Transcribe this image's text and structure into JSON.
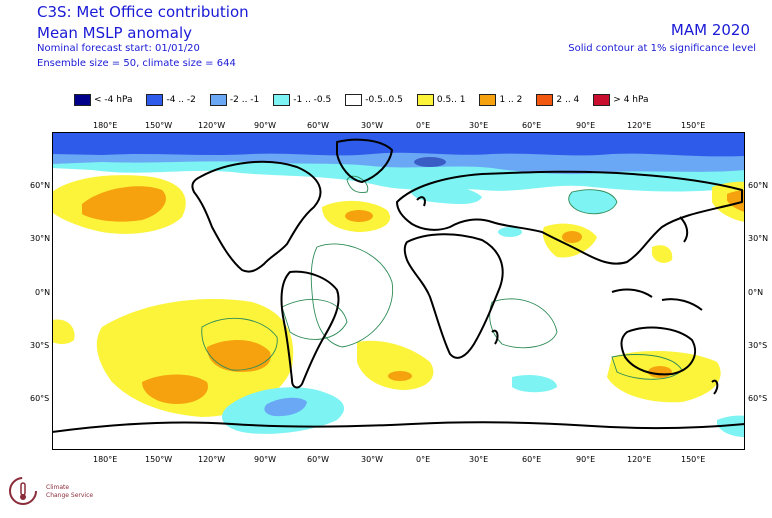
{
  "header": {
    "title_line1": "C3S: Met Office contribution",
    "title_line2": "Mean MSLP anomaly",
    "forecast_start": "Nominal forecast start: 01/01/20",
    "ensemble": "Ensemble size = 50, climate size = 644",
    "season": "MAM 2020",
    "contour_note": "Solid contour at 1% significance level"
  },
  "legend": [
    {
      "label": "< -4 hPa",
      "color": "#00008b"
    },
    {
      "label": "-4 .. -2",
      "color": "#2f5bea"
    },
    {
      "label": "-2 .. -1",
      "color": "#6aa8f5"
    },
    {
      "label": "-1 .. -0.5",
      "color": "#7ef3f3"
    },
    {
      "label": "-0.5..0.5",
      "color": "#ffffff"
    },
    {
      "label": "0.5.. 1",
      "color": "#fbf43a"
    },
    {
      "label": "1 .. 2",
      "color": "#f5a20e"
    },
    {
      "label": "2 .. 4",
      "color": "#f2580f"
    },
    {
      "label": "> 4 hPa",
      "color": "#c8102e"
    }
  ],
  "axes": {
    "lon_ticks": [
      "180°E",
      "150°W",
      "120°W",
      "90°W",
      "60°W",
      "30°W",
      "0°E",
      "30°E",
      "60°E",
      "90°E",
      "120°E",
      "150°E"
    ],
    "lat_ticks": [
      "60°N",
      "30°N",
      "0°N",
      "30°S",
      "60°S"
    ]
  },
  "logo": {
    "line1": "Climate",
    "line2": "Change Service"
  }
}
